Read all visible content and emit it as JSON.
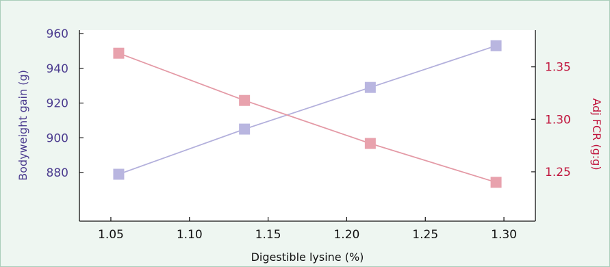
{
  "chart_data": {
    "type": "line",
    "xlabel": "Digestible lysine (%)",
    "ylabel_left": "Bodyweight gain (g)",
    "ylabel_right": "Adj FCR (g:g)",
    "xlim": [
      1.03,
      1.32
    ],
    "ylim_left": [
      852,
      962
    ],
    "ylim_right": [
      1.203,
      1.385
    ],
    "x_ticks": [
      "1.05",
      "1.10",
      "1.15",
      "1.20",
      "1.25",
      "1.30"
    ],
    "y_left_ticks": [
      "880",
      "900",
      "920",
      "940",
      "960"
    ],
    "y_right_ticks": [
      "1.25",
      "1.30",
      "1.35"
    ],
    "grid": false,
    "series": [
      {
        "axis": "left",
        "color": "#b3b0dc",
        "marker_color": "#b9b6e0",
        "points": [
          {
            "x": 1.055,
            "y": 879
          },
          {
            "x": 1.135,
            "y": 905
          },
          {
            "x": 1.215,
            "y": 929
          },
          {
            "x": 1.295,
            "y": 953
          }
        ]
      },
      {
        "axis": "right",
        "color": "#e49aa6",
        "marker_color": "#e8a2ad",
        "points": [
          {
            "x": 1.055,
            "y": 1.363
          },
          {
            "x": 1.135,
            "y": 1.318
          },
          {
            "x": 1.215,
            "y": 1.277
          },
          {
            "x": 1.295,
            "y": 1.24
          }
        ]
      }
    ],
    "colors": {
      "left_axis_text": "#4b3b8f",
      "right_axis_text": "#c0143c",
      "x_axis_text": "#111111",
      "axis_line": "#111111",
      "panel_background": "#eef6f1",
      "panel_border": "#a9cdb9"
    }
  }
}
